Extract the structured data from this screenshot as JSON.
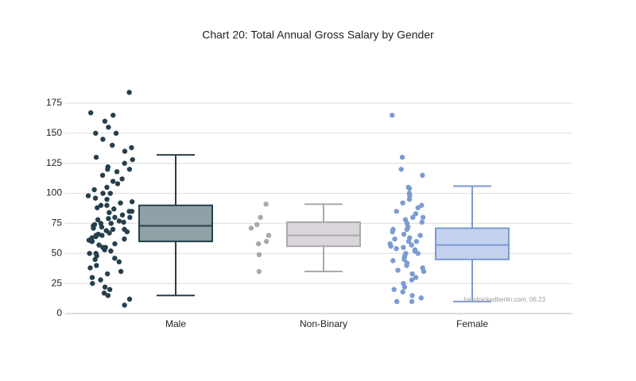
{
  "chart_data": {
    "type": "box",
    "title": "Chart 20: Total Annual Gross Salary by Gender",
    "annotation": "handpickedberlin.com, 06.23",
    "categories": [
      "Male",
      "Non-Binary",
      "Female"
    ],
    "boxes": [
      {
        "low": 15,
        "q1": 60,
        "median": 73,
        "q3": 90,
        "high": 132
      },
      {
        "low": 35,
        "q1": 56,
        "median": 65,
        "q3": 76,
        "high": 91
      },
      {
        "low": 10,
        "q1": 45,
        "median": 57,
        "q3": 71,
        "high": 106
      }
    ],
    "points": [
      [
        184,
        167,
        165,
        160,
        155,
        150,
        150,
        145,
        140,
        138,
        135,
        130,
        128,
        125,
        122,
        120,
        120,
        118,
        115,
        112,
        110,
        108,
        105,
        103,
        100,
        100,
        98,
        96,
        95,
        93,
        92,
        90,
        90,
        88,
        87,
        85,
        85,
        84,
        82,
        80,
        80,
        79,
        78,
        77,
        76,
        75,
        75,
        74,
        73,
        72,
        71,
        70,
        70,
        69,
        68,
        67,
        66,
        65,
        65,
        64,
        63,
        62,
        61,
        60,
        60,
        58,
        57,
        55,
        55,
        53,
        52,
        50,
        50,
        48,
        46,
        45,
        43,
        40,
        38,
        35,
        33,
        30,
        28,
        25,
        22,
        20,
        17,
        15,
        12,
        7
      ],
      [
        91,
        80,
        74,
        71,
        65,
        60,
        58,
        49,
        35
      ],
      [
        165,
        130,
        120,
        115,
        105,
        104,
        100,
        98,
        95,
        92,
        90,
        88,
        85,
        83,
        80,
        80,
        78,
        76,
        75,
        72,
        70,
        70,
        68,
        66,
        65,
        63,
        62,
        60,
        60,
        58,
        57,
        56,
        55,
        54,
        53,
        52,
        50,
        50,
        48,
        47,
        45,
        44,
        42,
        40,
        38,
        36,
        35,
        33,
        30,
        28,
        25,
        22,
        20,
        18,
        15,
        13,
        10,
        10
      ]
    ],
    "point_colors": [
      "#263f4d",
      "#a9a9a9",
      "#7b9bd2"
    ],
    "box_fills": [
      "#8fa0a6",
      "#d9d5db",
      "#c3d0ee"
    ],
    "box_strokes": [
      "#263f4d",
      "#a9a9a9",
      "#7b9bd2"
    ],
    "ylim": [
      0,
      175
    ],
    "yticks": [
      0,
      25,
      50,
      75,
      100,
      125,
      150,
      175
    ],
    "grid": true
  }
}
